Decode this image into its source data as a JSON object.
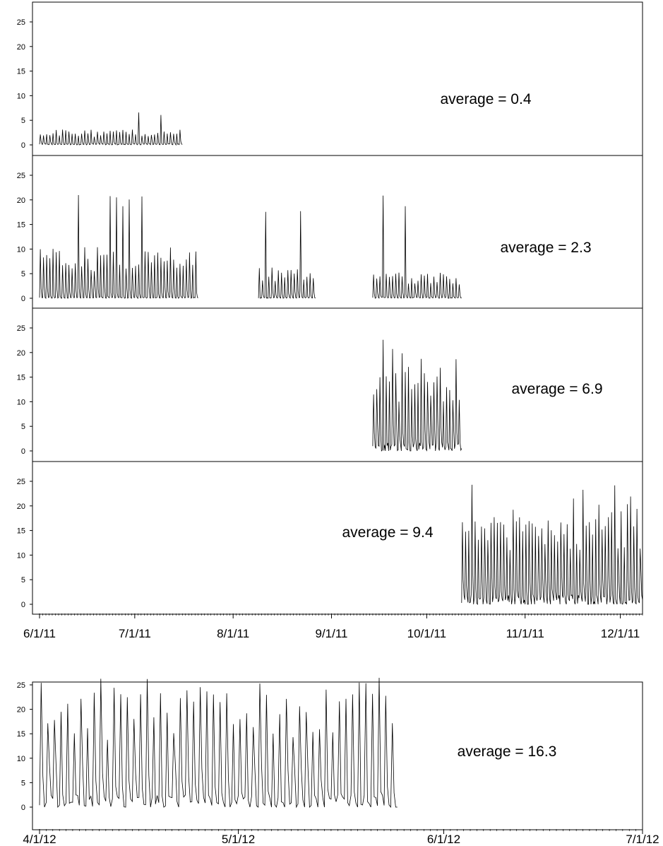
{
  "chart_data": [
    {
      "type": "line",
      "panel": "1",
      "annotation": "average = 0.4",
      "x_range": [
        "2011-06-01",
        "2011-12-08"
      ],
      "ylim": [
        0,
        25
      ],
      "y_ticks": [
        0,
        5,
        10,
        15,
        20,
        25
      ],
      "grid": false,
      "signal": {
        "start": "2011-06-01",
        "end": "2011-07-16",
        "typical_peak": 3,
        "max": 7
      }
    },
    {
      "type": "line",
      "panel": "2",
      "annotation": "average = 2.3",
      "x_range": [
        "2011-06-01",
        "2011-12-08"
      ],
      "ylim": [
        0,
        25
      ],
      "y_ticks": [
        0,
        5,
        10,
        15,
        20,
        25
      ],
      "grid": false,
      "segments": [
        {
          "start": "2011-06-01",
          "end": "2011-07-21",
          "typical_peak": 10,
          "max": 21
        },
        {
          "start": "2011-08-09",
          "end": "2011-08-27",
          "typical_peak": 6,
          "max": 18
        },
        {
          "start": "2011-09-14",
          "end": "2011-10-12",
          "typical_peak": 5,
          "max": 21
        }
      ]
    },
    {
      "type": "line",
      "panel": "3",
      "annotation": "average = 6.9",
      "x_range": [
        "2011-06-01",
        "2011-12-08"
      ],
      "ylim": [
        0,
        25
      ],
      "y_ticks": [
        0,
        5,
        10,
        15,
        20,
        25
      ],
      "grid": false,
      "signal": {
        "start": "2011-09-14",
        "end": "2011-10-12",
        "typical_peak": 18,
        "max": 23
      }
    },
    {
      "type": "line",
      "panel": "4",
      "annotation": "average = 9.4",
      "x_range": [
        "2011-06-01",
        "2011-12-08"
      ],
      "ylim": [
        0,
        25
      ],
      "y_ticks": [
        0,
        5,
        10,
        15,
        20,
        25
      ],
      "grid": false,
      "x_tick_labels": [
        "6/1/11",
        "7/1/11",
        "8/1/11",
        "9/1/11",
        "10/1/11",
        "11/1/11",
        "12/1/11"
      ],
      "x_tick_dates": [
        "2011-06-01",
        "2011-07-01",
        "2011-08-01",
        "2011-09-01",
        "2011-10-01",
        "2011-11-01",
        "2011-12-01"
      ],
      "signal": {
        "start": "2011-10-12",
        "end": "2011-12-08",
        "typical_peak": 20,
        "max": 25
      }
    },
    {
      "type": "line",
      "panel": "5",
      "annotation": "average = 16.3",
      "x_range": [
        "2012-04-01",
        "2012-07-01"
      ],
      "ylim": [
        0,
        25
      ],
      "y_ticks": [
        0,
        5,
        10,
        15,
        20,
        25
      ],
      "grid": false,
      "x_tick_labels": [
        "4/1/12",
        "5/1/12",
        "6/1/12",
        "7/1/12"
      ],
      "x_tick_dates": [
        "2012-04-01",
        "2012-05-01",
        "2012-06-01",
        "2012-07-01"
      ],
      "signal": {
        "start": "2012-04-01",
        "end": "2012-05-25",
        "typical_peak": 25,
        "max": 27
      }
    }
  ]
}
